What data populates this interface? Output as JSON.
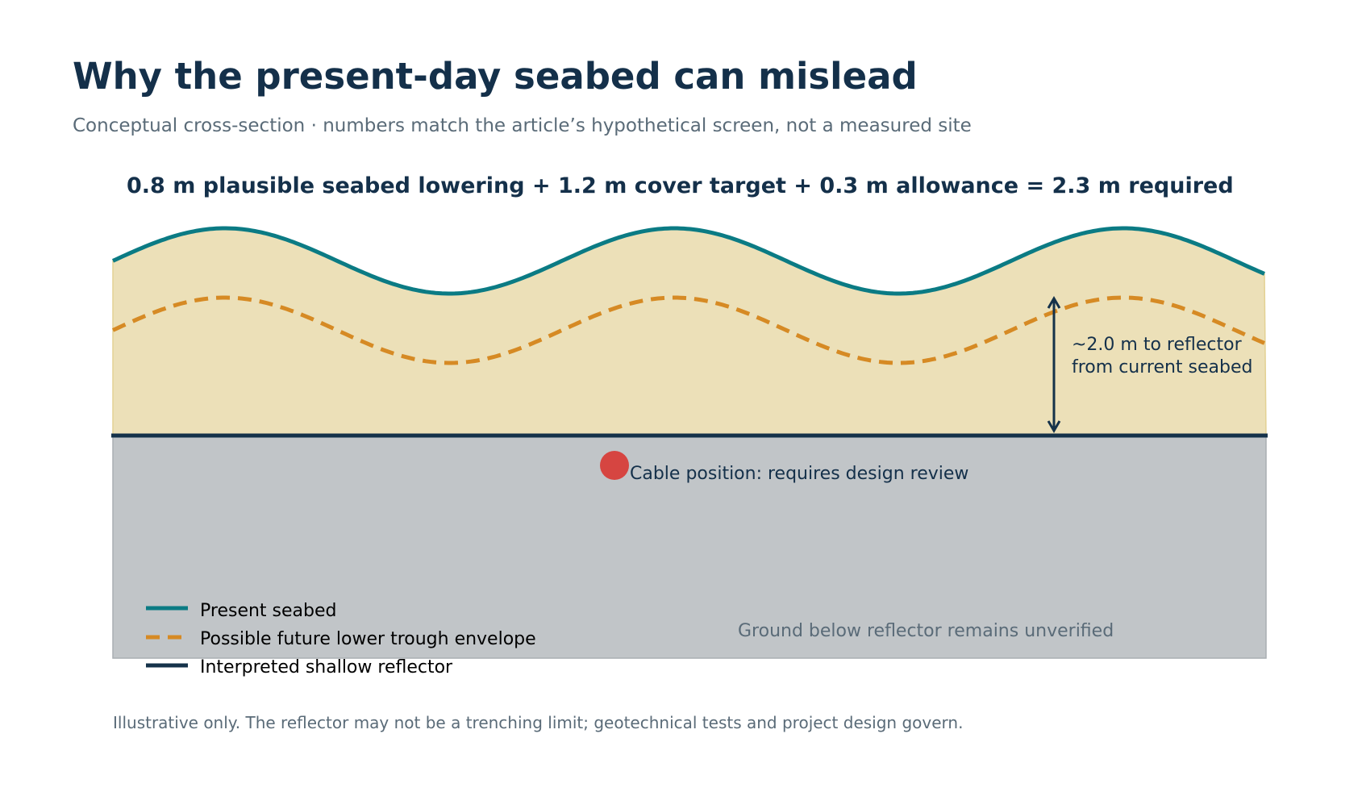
{
  "title": "Why the present-day seabed can mislead",
  "subtitle": "Conceptual cross-section · numbers match the article’s hypothetical screen, not a measured site",
  "equation": "0.8 m plausible seabed lowering + 1.2 m cover target + 0.3 m allowance = 2.3 m required",
  "annotations": {
    "depth_line1": "~2.0 m to reflector",
    "depth_line2": "from current seabed",
    "cable": "Cable position: requires design review",
    "unverified": "Ground below reflector remains unverified"
  },
  "legend": [
    {
      "label": "Present seabed",
      "style": "solid",
      "color": "#0b7b84"
    },
    {
      "label": "Possible future lower trough envelope",
      "style": "dashed",
      "color": "#d68a24"
    },
    {
      "label": "Interpreted shallow reflector",
      "style": "solid",
      "color": "#15324a"
    }
  ],
  "footnote": "Illustrative only. The reflector may not be a trenching limit; geotechnical tests and project design govern.",
  "colors": {
    "sediment": "#ece0b8",
    "sediment_edge": "#e3d193",
    "ground": "#c1c5c8",
    "ground_edge": "#a9aeb2",
    "present_seabed": "#0b7b84",
    "future_trough": "#d68a24",
    "reflector": "#15324a",
    "cable": "#d64541",
    "text_dark": "#14304a",
    "text_muted": "#5a6b78"
  }
}
